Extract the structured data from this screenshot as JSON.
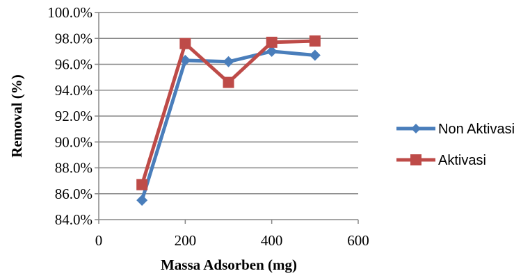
{
  "chart_data": {
    "type": "line",
    "title": "",
    "xlabel": "Massa Adsorben (mg)",
    "ylabel": "Removal (%)",
    "xlim": [
      0,
      600
    ],
    "ylim": [
      84.0,
      100.0
    ],
    "x_ticks": [
      0,
      200,
      400,
      600
    ],
    "x_tick_labels": [
      "0",
      "200",
      "400",
      "600"
    ],
    "y_ticks": [
      84,
      86,
      88,
      90,
      92,
      94,
      96,
      98,
      100
    ],
    "y_tick_labels": [
      "84.0%",
      "86.0%",
      "88.0%",
      "90.0%",
      "92.0%",
      "94.0%",
      "96.0%",
      "98.0%",
      "100.0%"
    ],
    "grid": "horizontal",
    "legend_position": "right",
    "x": [
      100,
      200,
      300,
      400,
      500
    ],
    "series": [
      {
        "name": "Non Aktivasi",
        "values": [
          85.5,
          96.3,
          96.2,
          97.0,
          96.7
        ],
        "color": "#4a7ebb",
        "marker": "diamond"
      },
      {
        "name": "Aktivasi",
        "values": [
          86.7,
          97.6,
          94.6,
          97.7,
          97.8
        ],
        "color": "#be4b48",
        "marker": "square"
      }
    ]
  }
}
